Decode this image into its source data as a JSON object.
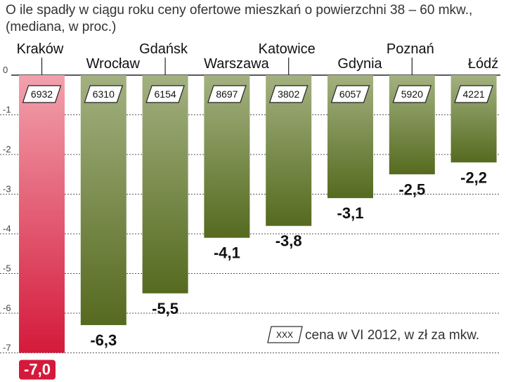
{
  "title": {
    "line1": "O ile spadły w ciągu roku ceny ofertowe mieszkań o powierzchni 38 – 60 mkw.,",
    "line2": "(mediana, w proc.)"
  },
  "chart_data": {
    "type": "bar",
    "title": "O ile spadły w ciągu roku ceny ofertowe mieszkań o powierzchni 38 – 60 mkw., (mediana, w proc.)",
    "categories": [
      "Kraków",
      "Wrocław",
      "Gdańsk",
      "Warszawa",
      "Katowice",
      "Gdynia",
      "Poznań",
      "Łódź"
    ],
    "values": [
      -7.0,
      -6.3,
      -5.5,
      -4.1,
      -3.8,
      -3.1,
      -2.5,
      -2.2
    ],
    "value_labels": [
      "-7,0",
      "-6,3",
      "-5,5",
      "-4,1",
      "-3,8",
      "-3,1",
      "-2,5",
      "-2,2"
    ],
    "prices": [
      "6932",
      "6310",
      "6154",
      "8697",
      "3802",
      "6057",
      "5920",
      "4221"
    ],
    "highlight_index": 0,
    "ylim": [
      -7,
      0
    ],
    "yticks": [
      0,
      -1,
      -2,
      -3,
      -4,
      -5,
      -6,
      -7
    ],
    "ytick_labels": [
      "0",
      "-1",
      "-2",
      "-3",
      "-4",
      "-5",
      "-6",
      "-7"
    ],
    "grid": true,
    "xlabel": "",
    "ylabel": "",
    "legend": {
      "sample": "XXX",
      "text": "cena w VI 2012, w zł za mkw.",
      "placement": "bottom-right"
    },
    "colors": {
      "bar_top": "#a3b180",
      "bar_bottom": "#556a1f",
      "highlight_top": "#f2a1ad",
      "highlight_bottom": "#d41a3b",
      "label_highlight_bg": "#d41a3b",
      "label_highlight_text": "#ffffff"
    }
  }
}
